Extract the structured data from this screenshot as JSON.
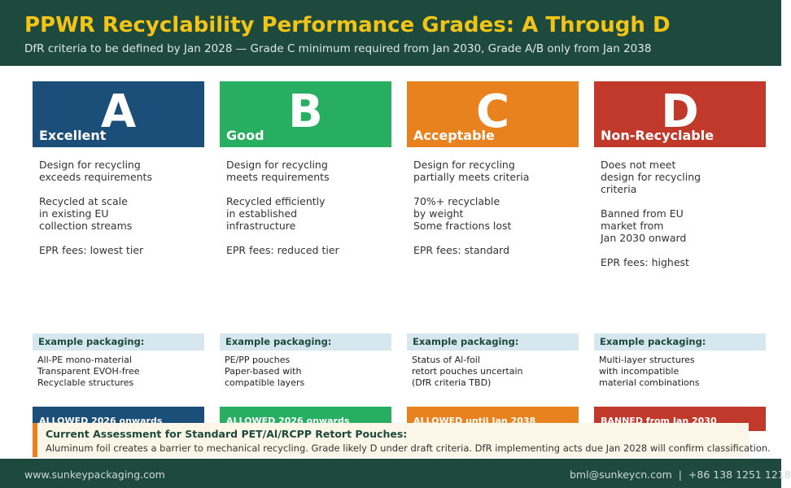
{
  "header": {
    "title": "PPWR Recyclability Performance Grades: A Through D",
    "subtitle": "DfR criteria to be defined by Jan 2028 — Grade C minimum required from Jan 2030, Grade A/B only from Jan 2038"
  },
  "colors": {
    "header_bg": "#1d4a3c",
    "title": "#f2c418",
    "grade_a": "#1b4f79",
    "grade_b": "#27ae60",
    "grade_c": "#e8821f",
    "grade_d": "#c0392b",
    "example_bg": "#d6e7ef"
  },
  "example_label": "Example packaging:",
  "grades": [
    {
      "letter": "A",
      "name": "Excellent",
      "description": [
        "Design for recycling\nexceeds requirements",
        "Recycled at scale\nin existing EU\ncollection streams",
        "EPR fees: lowest tier"
      ],
      "examples": [
        "All-PE mono-material",
        "Transparent EVOH-free",
        "Recyclable structures"
      ],
      "status": "ALLOWED 2026 onwards"
    },
    {
      "letter": "B",
      "name": "Good",
      "description": [
        "Design for recycling\nmeets requirements",
        "Recycled efficiently\nin established\ninfrastructure",
        "EPR fees: reduced tier"
      ],
      "examples": [
        "PE/PP pouches",
        "Paper-based with",
        "compatible layers"
      ],
      "status": "ALLOWED 2026 onwards"
    },
    {
      "letter": "C",
      "name": "Acceptable",
      "description": [
        "Design for recycling\npartially meets criteria",
        "70%+ recyclable\nby weight\nSome fractions lost",
        "EPR fees: standard"
      ],
      "examples": [
        "Status of Al-foil",
        "retort pouches uncertain",
        "(DfR criteria TBD)"
      ],
      "status": "ALLOWED until Jan 2038"
    },
    {
      "letter": "D",
      "name": "Non-Recyclable",
      "description": [
        "Does not meet\ndesign for recycling\ncriteria",
        "Banned from EU\nmarket from\nJan 2030 onward",
        "EPR fees: highest"
      ],
      "examples": [
        "Multi-layer structures",
        "with incompatible",
        "material combinations"
      ],
      "status": "BANNED from Jan 2030"
    }
  ],
  "assessment": {
    "title": "Current Assessment for Standard PET/Al/RCPP Retort Pouches:",
    "text": "Aluminum foil creates a barrier to mechanical recycling. Grade likely D under draft criteria. DfR implementing acts due Jan 2028 will confirm classification."
  },
  "footer": {
    "website": "www.sunkeypackaging.com",
    "contact": "bml@sunkeycn.com  |  +86 138 1251 1218"
  }
}
